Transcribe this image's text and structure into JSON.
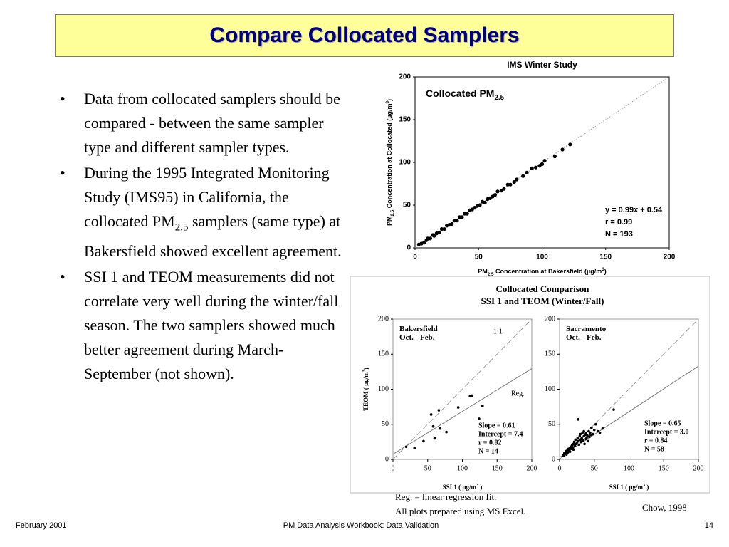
{
  "header": {
    "title": "Compare Collocated Samplers"
  },
  "bullets": [
    [
      {
        "text": "Data from collocated samplers should be compared - between the same sampler type and different sampler types."
      }
    ],
    [
      {
        "text": "During the 1995 Integrated Monitoring Study (IMS95) in California, the collocated PM"
      },
      {
        "text": "2.5",
        "style": "sub"
      },
      {
        "text": " samplers (same type) at Bakersfield showed excellent agreement."
      }
    ],
    [
      {
        "text": "SSI 1 and TEOM measurements did not correlate very well during the winter/fall season. The two samplers showed much better agreement during March-September (not shown)."
      }
    ]
  ],
  "panel": {
    "title_lines": [
      "Collocated Comparison",
      "SSI 1 and TEOM (Winter/Fall)"
    ]
  },
  "charts": [
    {
      "type": "scatter",
      "title": "IMS Winter Study",
      "label_lines": [
        [
          {
            "text": "Collocated PM"
          },
          {
            "text": "2.5",
            "style": "sub"
          }
        ]
      ],
      "y_label": [
        {
          "text": "PM"
        },
        {
          "text": "2.5",
          "style": "sub"
        },
        {
          "text": " Concentration at Collocated (µg/m"
        },
        {
          "text": "3",
          "style": "sup"
        },
        {
          "text": ")"
        }
      ],
      "x_label": [
        {
          "text": "PM"
        },
        {
          "text": "2.5",
          "style": "sub"
        },
        {
          "text": " Concentration at Bakersfield (µg/m"
        },
        {
          "text": "3",
          "style": "sup"
        },
        {
          "text": ")"
        }
      ],
      "stats_lines": [
        "y = 0.99x + 0.54",
        "r = 0.99",
        "N = 193"
      ],
      "line_labels": [],
      "reference_lines": [
        {
          "slope": 1,
          "intercept": 0,
          "style": "dotted"
        }
      ],
      "xlim": [
        0,
        200
      ],
      "ylim": [
        0,
        200
      ],
      "xticks": [
        0,
        50,
        100,
        150,
        200
      ],
      "yticks": [
        0,
        50,
        100,
        150,
        200
      ],
      "x": [
        3,
        5,
        7,
        9,
        10,
        12,
        14,
        15,
        17,
        19,
        21,
        23,
        25,
        27,
        29,
        31,
        33,
        35,
        37,
        39,
        41,
        43,
        45,
        47,
        49,
        51,
        53,
        55,
        57,
        59,
        61,
        63,
        65,
        68,
        70,
        73,
        75,
        78,
        80,
        85,
        88,
        92,
        95,
        98,
        100,
        102,
        110,
        116,
        122
      ],
      "values": [
        4,
        5,
        6,
        9,
        11,
        11,
        15,
        14,
        17,
        18,
        22,
        22,
        26,
        27,
        28,
        32,
        32,
        36,
        36,
        40,
        40,
        44,
        45,
        47,
        49,
        50,
        54,
        53,
        57,
        58,
        60,
        62,
        66,
        67,
        69,
        74,
        74,
        77,
        80,
        84,
        88,
        93,
        94,
        96,
        98,
        102,
        107,
        115,
        121
      ],
      "color": "#000000"
    },
    {
      "type": "scatter",
      "label_lines": [
        [
          {
            "text": "Bakersfield"
          }
        ],
        [
          {
            "text": "Oct. - Feb."
          }
        ]
      ],
      "y_label": [
        {
          "text": "TEOM ( µg/m"
        },
        {
          "text": "3",
          "style": "sup"
        },
        {
          "text": ")"
        }
      ],
      "x_label": [
        {
          "text": "SSI 1 ( µg/m"
        },
        {
          "text": "3",
          "style": "sup"
        },
        {
          "text": " )"
        }
      ],
      "stats_lines": [
        "Slope = 0.61",
        "Intercept = 7.4",
        "r = 0.82",
        "N = 14"
      ],
      "line_labels": [
        "1:1",
        "Reg."
      ],
      "reference_lines": [
        {
          "slope": 1,
          "intercept": 0,
          "style": "dashed"
        },
        {
          "slope": 0.61,
          "intercept": 7.4,
          "style": "solid"
        }
      ],
      "xlim": [
        0,
        200
      ],
      "ylim": [
        0,
        200
      ],
      "xticks": [
        0,
        50,
        100,
        150,
        200
      ],
      "yticks": [
        0,
        50,
        100,
        150,
        200
      ],
      "x": [
        19,
        31,
        44,
        55,
        58,
        66,
        68,
        77,
        94,
        111,
        114,
        124,
        129,
        60
      ],
      "values": [
        18,
        16,
        26,
        64,
        47,
        70,
        44,
        39,
        74,
        90,
        91,
        58,
        76,
        30
      ],
      "color": "#000000"
    },
    {
      "type": "scatter",
      "label_lines": [
        [
          {
            "text": "Sacramento"
          }
        ],
        [
          {
            "text": "Oct. - Feb."
          }
        ]
      ],
      "x_label": [
        {
          "text": "SSI 1 ( µg/m"
        },
        {
          "text": "3",
          "style": "sup"
        },
        {
          "text": " )"
        }
      ],
      "stats_lines": [
        "Slope = 0.65",
        "Intercept = 3.0",
        "r = 0.84",
        "N = 58"
      ],
      "line_labels": [],
      "reference_lines": [
        {
          "slope": 1,
          "intercept": 0,
          "style": "dashed"
        },
        {
          "slope": 0.65,
          "intercept": 3.0,
          "style": "solid"
        }
      ],
      "xlim": [
        0,
        200
      ],
      "ylim": [
        0,
        200
      ],
      "xticks": [
        0,
        50,
        100,
        150,
        200
      ],
      "yticks": [
        0,
        50,
        100,
        150,
        200
      ],
      "x": [
        5,
        6,
        7,
        8,
        9,
        10,
        10,
        11,
        12,
        12,
        13,
        13,
        14,
        15,
        15,
        16,
        17,
        18,
        19,
        20,
        20,
        21,
        22,
        23,
        24,
        25,
        26,
        27,
        28,
        29,
        30,
        30,
        31,
        32,
        33,
        34,
        35,
        35,
        36,
        37,
        38,
        38,
        39,
        40,
        41,
        42,
        43,
        44,
        45,
        46,
        48,
        50,
        52,
        55,
        58,
        62,
        27,
        78
      ],
      "values": [
        6,
        5,
        9,
        8,
        10,
        12,
        7,
        11,
        14,
        10,
        12,
        15,
        13,
        16,
        11,
        18,
        15,
        20,
        17,
        22,
        14,
        25,
        19,
        28,
        22,
        24,
        30,
        26,
        21,
        33,
        28,
        36,
        25,
        30,
        38,
        27,
        33,
        40,
        22,
        35,
        29,
        37,
        31,
        34,
        26,
        40,
        32,
        38,
        35,
        45,
        36,
        42,
        50,
        40,
        38,
        44,
        57,
        71
      ],
      "color": "#000000"
    }
  ],
  "notes": [
    "Reg. = linear regression fit.",
    "All plots prepared using MS Excel."
  ],
  "credit": "Chow, 1998",
  "footer": {
    "left": "February 2001",
    "center": "PM Data Analysis Workbook:  Data Validation",
    "right": "14"
  }
}
